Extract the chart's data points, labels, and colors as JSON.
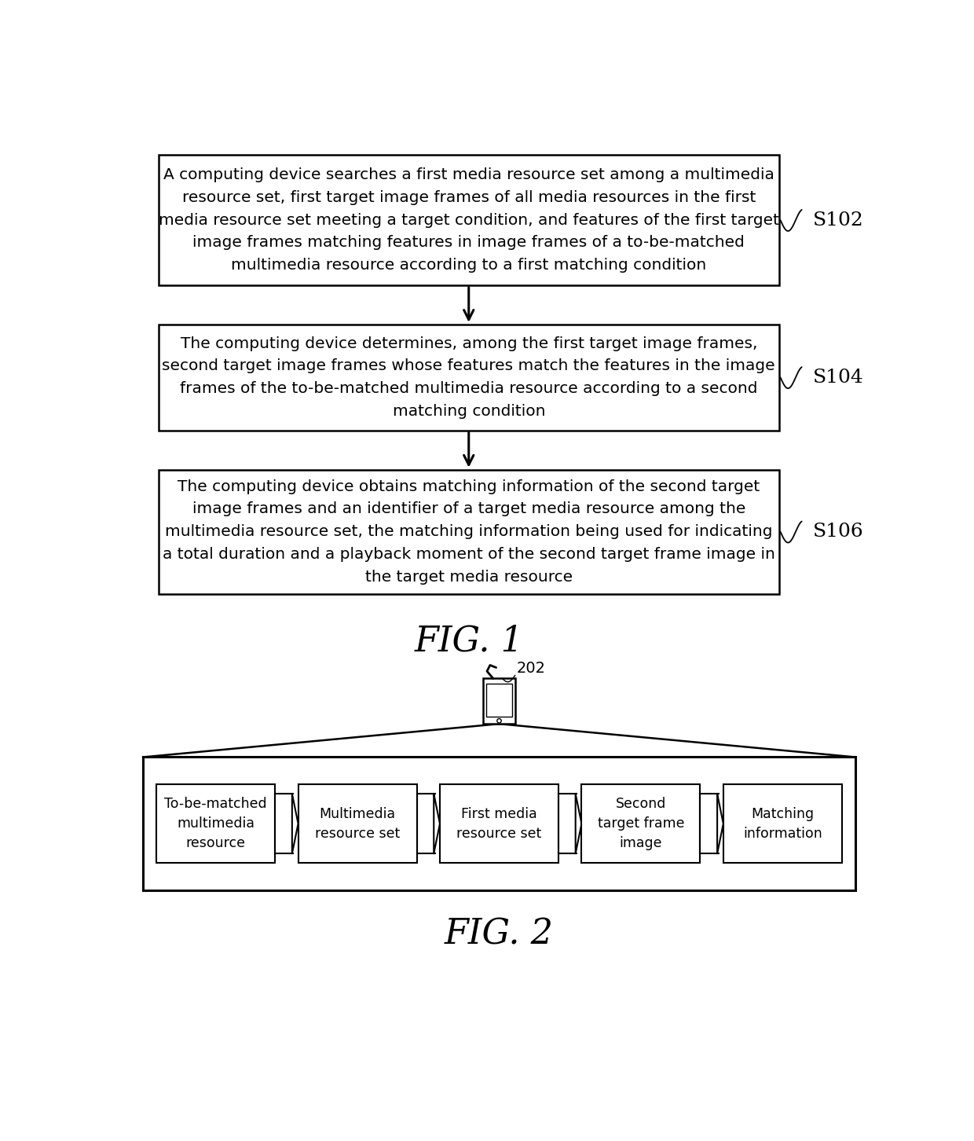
{
  "bg_color": "#ffffff",
  "fig1_title": "FIG. 1",
  "fig2_title": "FIG. 2",
  "box1_text": "A computing device searches a first media resource set among a multimedia\nresource set, first target image frames of all media resources in the first\nmedia resource set meeting a target condition, and features of the first target\nimage frames matching features in image frames of a to-be-matched\nmultimedia resource according to a first matching condition",
  "box1_label": "S102",
  "box2_text": "The computing device determines, among the first target image frames,\nsecond target image frames whose features match the features in the image\nframes of the to-be-matched multimedia resource according to a second\nmatching condition",
  "box2_label": "S104",
  "box3_text": "The computing device obtains matching information of the second target\nimage frames and an identifier of a target media resource among the\nmultimedia resource set, the matching information being used for indicating\na total duration and a playback moment of the second target frame image in\nthe target media resource",
  "box3_label": "S106",
  "fig2_boxes": [
    "To-be-matched\nmultimedia\nresource",
    "Multimedia\nresource set",
    "First media\nresource set",
    "Second\ntarget frame\nimage",
    "Matching\ninformation"
  ],
  "device_label": "202",
  "line_color": "#000000",
  "box_edge_color": "#000000",
  "text_color": "#000000",
  "font_size_body": 14.5,
  "font_size_label": 18,
  "font_size_fig_title": 32,
  "font_size_small": 13
}
